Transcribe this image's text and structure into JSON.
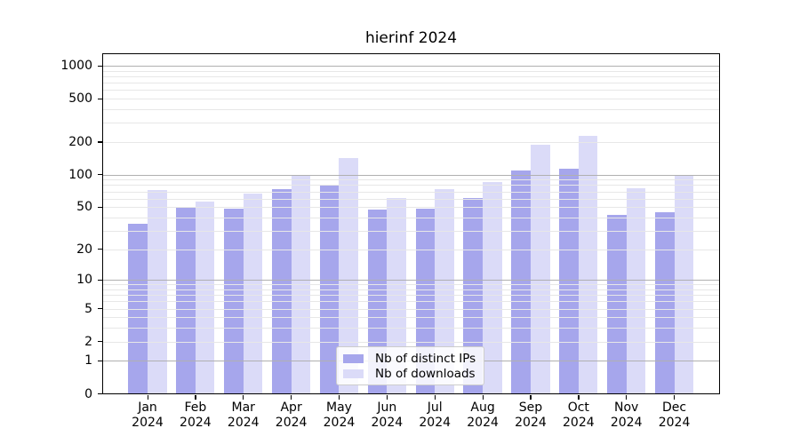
{
  "title": "hierinf 2024",
  "chart_data": {
    "type": "bar",
    "title": "hierinf 2024",
    "categories": [
      "Jan",
      "Feb",
      "Mar",
      "Apr",
      "May",
      "Jun",
      "Jul",
      "Aug",
      "Sep",
      "Oct",
      "Nov",
      "Dec"
    ],
    "category_year": "2024",
    "series": [
      {
        "name": "Nb of distinct IPs",
        "color": "#a6a6ec",
        "values": [
          35,
          50,
          48,
          74,
          80,
          47,
          48,
          61,
          110,
          113,
          42,
          45
        ]
      },
      {
        "name": "Nb of downloads",
        "color": "#dbdbf8",
        "values": [
          72,
          56,
          67,
          100,
          143,
          61,
          74,
          85,
          190,
          226,
          75,
          100
        ]
      }
    ],
    "y_axis": {
      "scale": "log10(1+v)",
      "tick_values": [
        0,
        1,
        2,
        5,
        10,
        20,
        50,
        100,
        200,
        500,
        1000
      ],
      "tick_labels": [
        "0",
        "1",
        "2",
        "5",
        "10",
        "20",
        "50",
        "100",
        "200",
        "500",
        "1000"
      ],
      "major_gridlines": [
        1,
        10,
        100,
        1000
      ],
      "minor_gridlines": [
        2,
        3,
        4,
        5,
        6,
        7,
        8,
        9,
        20,
        30,
        40,
        50,
        60,
        70,
        80,
        90,
        200,
        300,
        400,
        500,
        600,
        700,
        800,
        900
      ],
      "top_value": 1000
    },
    "legend": {
      "position": "bottom-center",
      "items": [
        "Nb of distinct IPs",
        "Nb of downloads"
      ]
    },
    "grid": "on",
    "colors": {
      "major_grid": "#b0b0b0",
      "minor_grid": "#e7e7e7",
      "axis": "#000000",
      "text": "#000000",
      "legend_border": "#cccccc"
    }
  }
}
